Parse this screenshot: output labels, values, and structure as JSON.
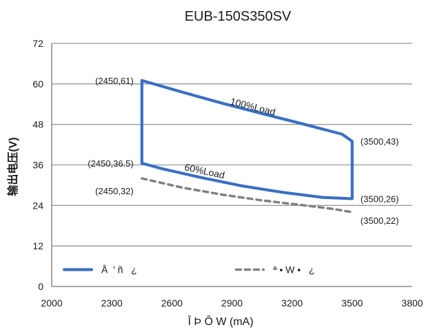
{
  "chart_data": {
    "type": "line",
    "title": "EUB-150S350SV",
    "xlabel": "Î Þ Ô W (mA)",
    "ylabel": "输出电压(V)",
    "xlim": [
      2000,
      3800
    ],
    "ylim": [
      0,
      72
    ],
    "x_ticks": [
      {
        "value": 2000,
        "label": "2000"
      },
      {
        "value": 2300,
        "label": "2300"
      },
      {
        "value": 2600,
        "label": "2600"
      },
      {
        "value": 2900,
        "label": "2900"
      },
      {
        "value": 3200,
        "label": "3200"
      },
      {
        "value": 3500,
        "label": "3500"
      },
      {
        "value": 3800,
        "label": "3800"
      }
    ],
    "y_ticks": [
      {
        "value": 0,
        "label": "0"
      },
      {
        "value": 12,
        "label": "12"
      },
      {
        "value": 24,
        "label": "24"
      },
      {
        "value": 36,
        "label": "36"
      },
      {
        "value": 48,
        "label": "48"
      },
      {
        "value": 60,
        "label": "60"
      },
      {
        "value": 72,
        "label": "72"
      }
    ],
    "grid": "horizontal",
    "legend_position": "bottom",
    "series": [
      {
        "name": "Å  ' ñ   ¿",
        "color": "#3a6fc4",
        "style": "solid",
        "closed": true,
        "points": [
          [
            2450,
            61
          ],
          [
            2650,
            57.6
          ],
          [
            2850,
            54.3
          ],
          [
            3050,
            51.2
          ],
          [
            3250,
            48.2
          ],
          [
            3450,
            45.1
          ],
          [
            3500,
            43
          ],
          [
            3500,
            26
          ],
          [
            3350,
            26.4
          ],
          [
            3150,
            27.9
          ],
          [
            2950,
            29.8
          ],
          [
            2750,
            32.2
          ],
          [
            2550,
            34.9
          ],
          [
            2450,
            36.5
          ],
          [
            2450,
            61
          ]
        ]
      },
      {
        "name": "ª • W •   ¿",
        "color": "#808080",
        "style": "dashed",
        "closed": false,
        "points": [
          [
            2450,
            32
          ],
          [
            2650,
            29.3
          ],
          [
            2850,
            27.2
          ],
          [
            3050,
            25.5
          ],
          [
            3250,
            24.1
          ],
          [
            3400,
            23
          ],
          [
            3500,
            22
          ]
        ]
      }
    ],
    "curve_labels": [
      {
        "text": "100%Load",
        "x": 3000,
        "y": 52.3,
        "angle": 14
      },
      {
        "text": "60%Load",
        "x": 2760,
        "y": 33.2,
        "angle": 12
      }
    ],
    "annotations": [
      {
        "text": "(2450,61)",
        "x": 2450,
        "y": 61,
        "anchor": "left"
      },
      {
        "text": "(2450,36.5)",
        "x": 2450,
        "y": 36.5,
        "anchor": "left"
      },
      {
        "text": "(2450,32)",
        "x": 2450,
        "y": 32,
        "anchor": "left-below"
      },
      {
        "text": "(3500,43)",
        "x": 3500,
        "y": 43,
        "anchor": "right"
      },
      {
        "text": "(3500,26)",
        "x": 3500,
        "y": 26,
        "anchor": "right"
      },
      {
        "text": "(3500,22)",
        "x": 3500,
        "y": 22,
        "anchor": "right-below"
      }
    ]
  }
}
